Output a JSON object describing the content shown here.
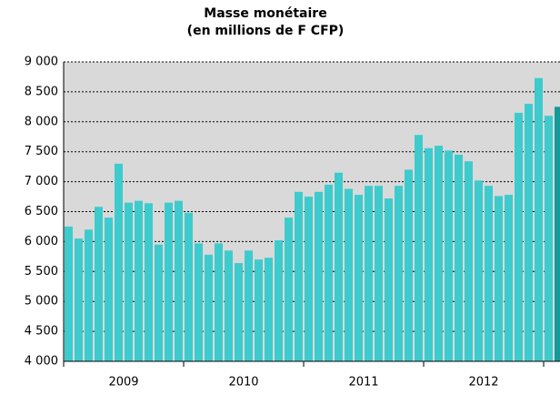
{
  "chart_data": {
    "type": "bar",
    "title": "Masse monétaire",
    "subtitle": "(en millions de F CFP)",
    "categories": [
      "2009",
      "2009",
      "2009",
      "2009",
      "2009",
      "2009",
      "2009",
      "2009",
      "2009",
      "2009",
      "2009",
      "2009",
      "2010",
      "2010",
      "2010",
      "2010",
      "2010",
      "2010",
      "2010",
      "2010",
      "2010",
      "2010",
      "2010",
      "2010",
      "2011",
      "2011",
      "2011",
      "2011",
      "2011",
      "2011",
      "2011",
      "2011",
      "2011",
      "2011",
      "2011",
      "2011",
      "2012",
      "2012",
      "2012",
      "2012",
      "2012",
      "2012",
      "2012",
      "2012",
      "2012",
      "2012",
      "2012",
      "2012",
      null,
      null
    ],
    "values": [
      6250,
      6050,
      6200,
      6580,
      6400,
      7300,
      6650,
      6680,
      6640,
      5950,
      6650,
      6680,
      6480,
      5970,
      5780,
      5970,
      5850,
      5640,
      5850,
      5700,
      5730,
      6020,
      6400,
      6830,
      6750,
      6830,
      6950,
      7150,
      6880,
      6780,
      6930,
      6930,
      6720,
      6930,
      7200,
      7780,
      7560,
      7600,
      7520,
      7450,
      7340,
      7020,
      6930,
      6760,
      6780,
      8150,
      8300,
      8730,
      8100,
      8250
    ],
    "colors": [
      "#3ecbcd",
      "#3ecbcd",
      "#3ecbcd",
      "#3ecbcd",
      "#3ecbcd",
      "#3ecbcd",
      "#3ecbcd",
      "#3ecbcd",
      "#3ecbcd",
      "#3ecbcd",
      "#3ecbcd",
      "#3ecbcd",
      "#3ecbcd",
      "#3ecbcd",
      "#3ecbcd",
      "#3ecbcd",
      "#3ecbcd",
      "#3ecbcd",
      "#3ecbcd",
      "#3ecbcd",
      "#3ecbcd",
      "#3ecbcd",
      "#3ecbcd",
      "#3ecbcd",
      "#3ecbcd",
      "#3ecbcd",
      "#3ecbcd",
      "#3ecbcd",
      "#3ecbcd",
      "#3ecbcd",
      "#3ecbcd",
      "#3ecbcd",
      "#3ecbcd",
      "#3ecbcd",
      "#3ecbcd",
      "#3ecbcd",
      "#3ecbcd",
      "#3ecbcd",
      "#3ecbcd",
      "#3ecbcd",
      "#3ecbcd",
      "#3ecbcd",
      "#3ecbcd",
      "#3ecbcd",
      "#3ecbcd",
      "#3ecbcd",
      "#3ecbcd",
      "#3ecbcd",
      "#3ecbcd",
      "#16999a"
    ],
    "ylim": [
      4000,
      9000
    ],
    "yticks": [
      {
        "value": 4000,
        "label": "4 000"
      },
      {
        "value": 4500,
        "label": "4 500"
      },
      {
        "value": 5000,
        "label": "5 000"
      },
      {
        "value": 5500,
        "label": "5 500"
      },
      {
        "value": 6000,
        "label": "6 000"
      },
      {
        "value": 6500,
        "label": "6 500"
      },
      {
        "value": 7000,
        "label": "7 000"
      },
      {
        "value": 7500,
        "label": "7 500"
      },
      {
        "value": 8000,
        "label": "8 000"
      },
      {
        "value": 8500,
        "label": "8 500"
      },
      {
        "value": 9000,
        "label": "9 000"
      }
    ],
    "grid": true
  }
}
